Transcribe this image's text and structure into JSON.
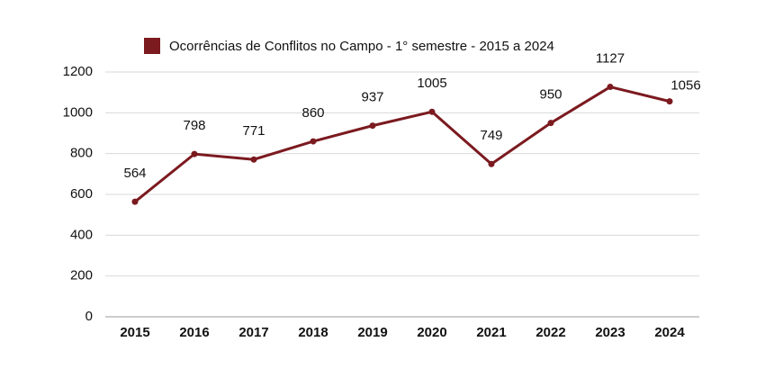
{
  "chart_data": {
    "type": "line",
    "categories": [
      "2015",
      "2016",
      "2017",
      "2018",
      "2019",
      "2020",
      "2021",
      "2022",
      "2023",
      "2024"
    ],
    "series": [
      {
        "name": "Ocorrências de Conflitos no Campo - 1° semestre - 2015 a 2024",
        "color": "#7b1a1f",
        "values": [
          564,
          798,
          771,
          860,
          937,
          1005,
          749,
          950,
          1127,
          1056
        ]
      }
    ],
    "ylim": [
      0,
      1200
    ],
    "yticks": [
      0,
      200,
      400,
      600,
      800,
      1000,
      1200
    ],
    "grid": true,
    "legend": "top"
  }
}
